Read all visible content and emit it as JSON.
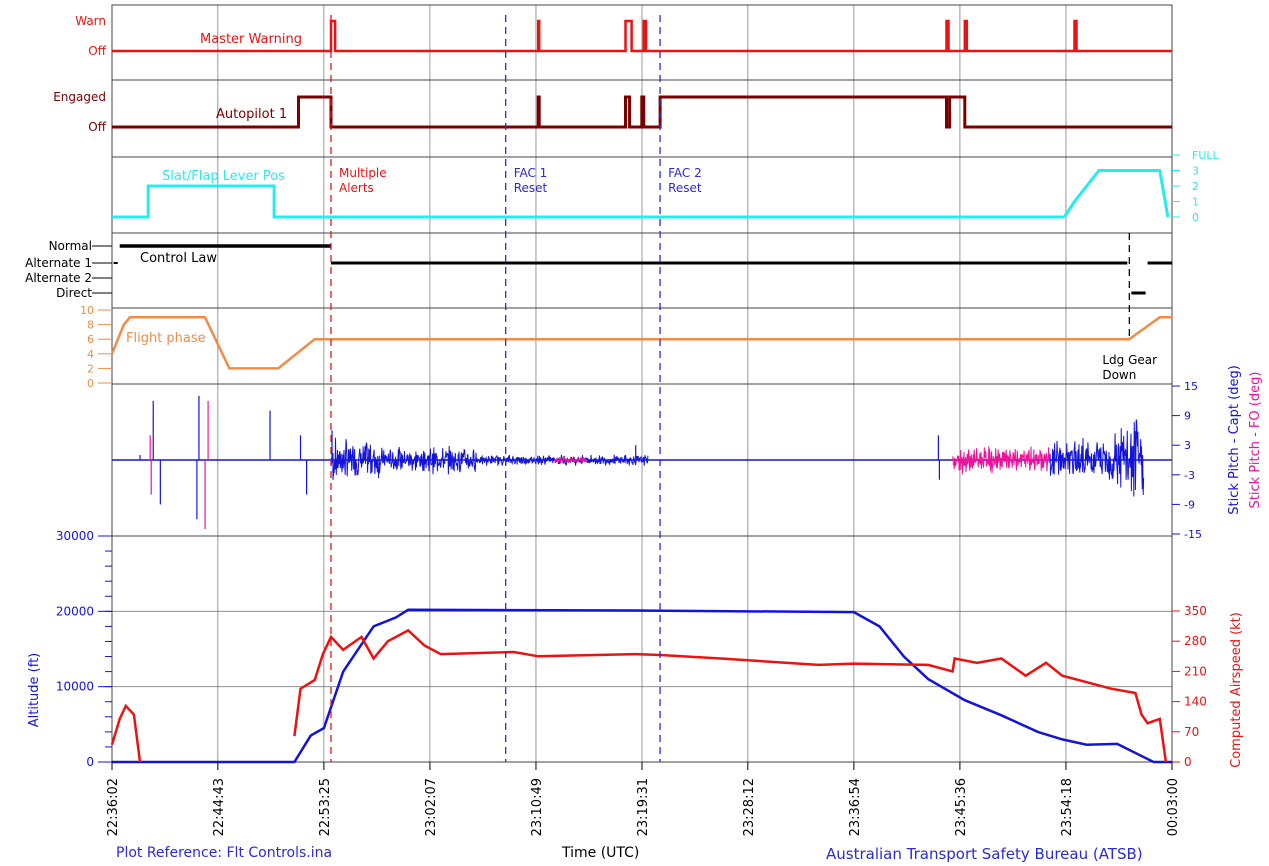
{
  "footer": {
    "plot_reference": "Plot Reference: Flt Controls.ina",
    "xlabel": "Time (UTC)",
    "source": "Australian Transport Safety Bureau (ATSB)"
  },
  "colors": {
    "red": "#ee1111",
    "dark_red": "#7a0000",
    "cyan": "#22eef0",
    "black": "#000000",
    "orange": "#f08c46",
    "blue": "#1414d8",
    "magenta": "#ee1199",
    "grid": "#7f7f7f"
  },
  "chart_data": {
    "type": "line",
    "x_axis": {
      "label": "Time (UTC)",
      "range": [
        "22:36:02",
        "00:03:00"
      ],
      "ticks": [
        "22:36:02",
        "22:44:43",
        "22:53:25",
        "23:02:07",
        "23:10:49",
        "23:19:31",
        "23:28:12",
        "23:36:54",
        "23:45:36",
        "23:54:18",
        "00:03:00"
      ]
    },
    "panels": [
      {
        "id": "master_warning",
        "series_label": "Master Warning",
        "states": [
          "Off",
          "Warn"
        ],
        "color": "#ee1111",
        "segments": [
          {
            "time": "22:36:02",
            "state": "Off"
          },
          {
            "time": "22:54:00",
            "state": "Warn"
          },
          {
            "time": "22:54:20",
            "state": "Off"
          },
          {
            "time": "23:11:00",
            "state": "Warn"
          },
          {
            "time": "23:11:05",
            "state": "Off"
          },
          {
            "time": "23:18:10",
            "state": "Warn"
          },
          {
            "time": "23:18:40",
            "state": "Off"
          },
          {
            "time": "23:19:40",
            "state": "Warn"
          },
          {
            "time": "23:19:50",
            "state": "Off"
          },
          {
            "time": "23:44:30",
            "state": "Warn"
          },
          {
            "time": "23:44:40",
            "state": "Off"
          },
          {
            "time": "23:46:00",
            "state": "Warn"
          },
          {
            "time": "23:46:10",
            "state": "Off"
          },
          {
            "time": "23:55:00",
            "state": "Warn"
          },
          {
            "time": "23:55:10",
            "state": "Off"
          }
        ]
      },
      {
        "id": "autopilot_1",
        "series_label": "Autopilot 1",
        "states": [
          "Off",
          "Engaged"
        ],
        "color": "#7a0000",
        "segments": [
          {
            "time": "22:36:02",
            "state": "Off"
          },
          {
            "time": "22:51:20",
            "state": "Engaged"
          },
          {
            "time": "22:54:00",
            "state": "Off"
          },
          {
            "time": "23:11:00",
            "state": "Engaged"
          },
          {
            "time": "23:11:05",
            "state": "Off"
          },
          {
            "time": "23:18:10",
            "state": "Engaged"
          },
          {
            "time": "23:18:30",
            "state": "Off"
          },
          {
            "time": "23:19:30",
            "state": "Engaged"
          },
          {
            "time": "23:19:40",
            "state": "Off"
          },
          {
            "time": "23:21:00",
            "state": "Engaged"
          },
          {
            "time": "23:44:30",
            "state": "Off"
          },
          {
            "time": "23:44:45",
            "state": "Engaged"
          },
          {
            "time": "23:46:00",
            "state": "Off"
          }
        ]
      },
      {
        "id": "slat_flap",
        "series_label": "Slat/Flap Lever Pos",
        "y_ticks": [
          "0",
          "1",
          "2",
          "3",
          "FULL"
        ],
        "color": "#22eef0",
        "points": [
          [
            "22:36:02",
            0
          ],
          [
            "22:39:00",
            0
          ],
          [
            "22:39:00",
            2
          ],
          [
            "22:49:20",
            2
          ],
          [
            "22:49:20",
            0
          ]
        ],
        "points_late": [
          [
            "23:54:10",
            0
          ],
          [
            "23:55:00",
            1
          ],
          [
            "23:56:00",
            2
          ],
          [
            "23:57:00",
            3
          ],
          [
            "00:02:00",
            3
          ],
          [
            "00:02:40",
            0
          ]
        ]
      },
      {
        "id": "control_law",
        "series_label": "Control Law",
        "states": [
          "Direct",
          "Alternate 2",
          "Alternate 1",
          "Normal"
        ],
        "color": "#000000"
      },
      {
        "id": "flight_phase",
        "series_label": "Flight phase",
        "y_ticks": [
          0,
          2,
          4,
          6,
          8,
          10
        ],
        "color": "#f08c46",
        "points": [
          [
            "22:36:02",
            4
          ],
          [
            "22:37:00",
            8
          ],
          [
            "22:37:30",
            9
          ],
          [
            "22:43:40",
            9
          ],
          [
            "22:45:40",
            2
          ],
          [
            "22:49:40",
            2
          ],
          [
            "22:52:40",
            6
          ],
          [
            "23:59:30",
            6
          ],
          [
            "00:02:00",
            9
          ],
          [
            "00:03:00",
            9
          ]
        ]
      },
      {
        "id": "stick_pitch",
        "series": [
          {
            "name": "Stick Pitch - Capt (deg)",
            "color": "#1414d8"
          },
          {
            "name": "Stick Pitch - FO (deg)",
            "color": "#ee1199"
          }
        ],
        "y_ticks": [
          -15,
          -9,
          -3,
          3,
          9,
          15
        ],
        "ylim": [
          -15,
          15
        ]
      },
      {
        "id": "altitude_airspeed",
        "series": [
          {
            "name": "Altitude (ft)",
            "color": "#1414d8",
            "ylim": [
              0,
              30000
            ],
            "y_ticks": [
              0,
              10000,
              20000,
              30000
            ],
            "points": [
              [
                "22:36:02",
                0
              ],
              [
                "22:51:00",
                0
              ],
              [
                "22:52:20",
                3500
              ],
              [
                "22:53:25",
                4500
              ],
              [
                "22:55:00",
                12000
              ],
              [
                "22:57:30",
                18000
              ],
              [
                "22:59:20",
                19200
              ],
              [
                "23:00:20",
                20200
              ],
              [
                "23:20:00",
                20100
              ],
              [
                "23:36:54",
                19900
              ],
              [
                "23:39:00",
                18000
              ],
              [
                "23:41:00",
                14000
              ],
              [
                "23:43:00",
                11000
              ],
              [
                "23:46:00",
                8200
              ],
              [
                "23:49:00",
                6200
              ],
              [
                "23:52:00",
                4000
              ],
              [
                "23:54:00",
                3000
              ],
              [
                "23:56:00",
                2300
              ],
              [
                "23:58:30",
                2400
              ],
              [
                "00:00:30",
                800
              ],
              [
                "00:01:30",
                0
              ],
              [
                "00:03:00",
                0
              ]
            ]
          },
          {
            "name": "Computed Airspeed (kt)",
            "color": "#ee1111",
            "ylim": [
              0,
              350
            ],
            "y_ticks": [
              0,
              70,
              140,
              210,
              280,
              350
            ],
            "points": [
              [
                "22:36:02",
                40
              ],
              [
                "22:36:40",
                100
              ],
              [
                "22:37:10",
                130
              ],
              [
                "22:37:50",
                110
              ],
              [
                "22:38:20",
                0
              ]
            ],
            "points_2": [
              [
                "22:51:00",
                60
              ],
              [
                "22:51:30",
                170
              ],
              [
                "22:52:40",
                190
              ],
              [
                "22:53:20",
                250
              ],
              [
                "22:54:00",
                290
              ],
              [
                "22:55:00",
                260
              ],
              [
                "22:56:30",
                290
              ],
              [
                "22:57:30",
                240
              ],
              [
                "22:58:40",
                280
              ],
              [
                "23:00:20",
                305
              ],
              [
                "23:01:40",
                270
              ],
              [
                "23:03:00",
                250
              ],
              [
                "23:09:00",
                255
              ],
              [
                "23:11:00",
                245
              ],
              [
                "23:19:00",
                250
              ],
              [
                "23:21:00",
                248
              ],
              [
                "23:26:00",
                240
              ],
              [
                "23:34:00",
                225
              ],
              [
                "23:36:54",
                228
              ],
              [
                "23:43:00",
                225
              ],
              [
                "23:45:00",
                210
              ],
              [
                "23:45:10",
                240
              ],
              [
                "23:47:00",
                230
              ],
              [
                "23:49:00",
                240
              ],
              [
                "23:51:00",
                200
              ],
              [
                "23:52:40",
                230
              ],
              [
                "23:54:00",
                200
              ],
              [
                "23:56:00",
                185
              ],
              [
                "23:58:00",
                170
              ],
              [
                "00:00:00",
                160
              ],
              [
                "00:00:30",
                110
              ],
              [
                "00:01:00",
                90
              ],
              [
                "00:02:00",
                100
              ],
              [
                "00:02:30",
                0
              ]
            ]
          }
        ]
      }
    ],
    "annotations": [
      {
        "time": "22:54:00",
        "text": "Multiple\nAlerts",
        "color": "#ee1111",
        "style": "dashed"
      },
      {
        "time": "23:08:20",
        "text": "FAC 1\nReset",
        "color": "#2a2ad8",
        "style": "dashed"
      },
      {
        "time": "23:21:00",
        "text": "FAC 2\nReset",
        "color": "#2a2ad8",
        "style": "dashed"
      },
      {
        "time": "23:59:30",
        "text": "Ldg Gear\nDown",
        "color": "#000000",
        "style": "dashed"
      }
    ],
    "grid": true
  }
}
